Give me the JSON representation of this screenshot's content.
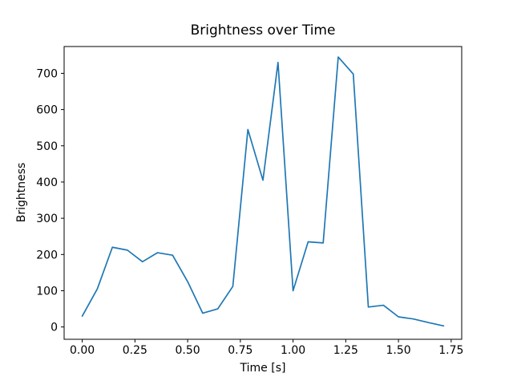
{
  "chart_data": {
    "type": "line",
    "title": "Brightness over Time",
    "xlabel": "Time [s]",
    "ylabel": "Brightness",
    "line_color": "#1f77b4",
    "background_color": "#ffffff",
    "grid": false,
    "legend": null,
    "x": [
      0.0,
      0.0714,
      0.1429,
      0.2143,
      0.2857,
      0.3571,
      0.4286,
      0.5,
      0.5714,
      0.6429,
      0.7143,
      0.7857,
      0.8571,
      0.9286,
      1.0,
      1.0714,
      1.1429,
      1.2143,
      1.2857,
      1.3571,
      1.4286,
      1.5,
      1.5714,
      1.6429,
      1.7143
    ],
    "values": [
      30,
      105,
      220,
      212,
      180,
      205,
      198,
      125,
      38,
      50,
      112,
      545,
      405,
      730,
      100,
      235,
      232,
      745,
      698,
      55,
      60,
      28,
      22,
      12,
      3
    ],
    "x_ticks": [
      0.0,
      0.25,
      0.5,
      0.75,
      1.0,
      1.25,
      1.5,
      1.75
    ],
    "x_tick_labels": [
      "0.00",
      "0.25",
      "0.50",
      "0.75",
      "1.00",
      "1.25",
      "1.50",
      "1.75"
    ],
    "y_ticks": [
      0,
      100,
      200,
      300,
      400,
      500,
      600,
      700
    ],
    "y_tick_labels": [
      "0",
      "100",
      "200",
      "300",
      "400",
      "500",
      "600",
      "700"
    ],
    "xlim": [
      -0.086,
      1.8
    ],
    "ylim": [
      -34,
      774
    ]
  }
}
